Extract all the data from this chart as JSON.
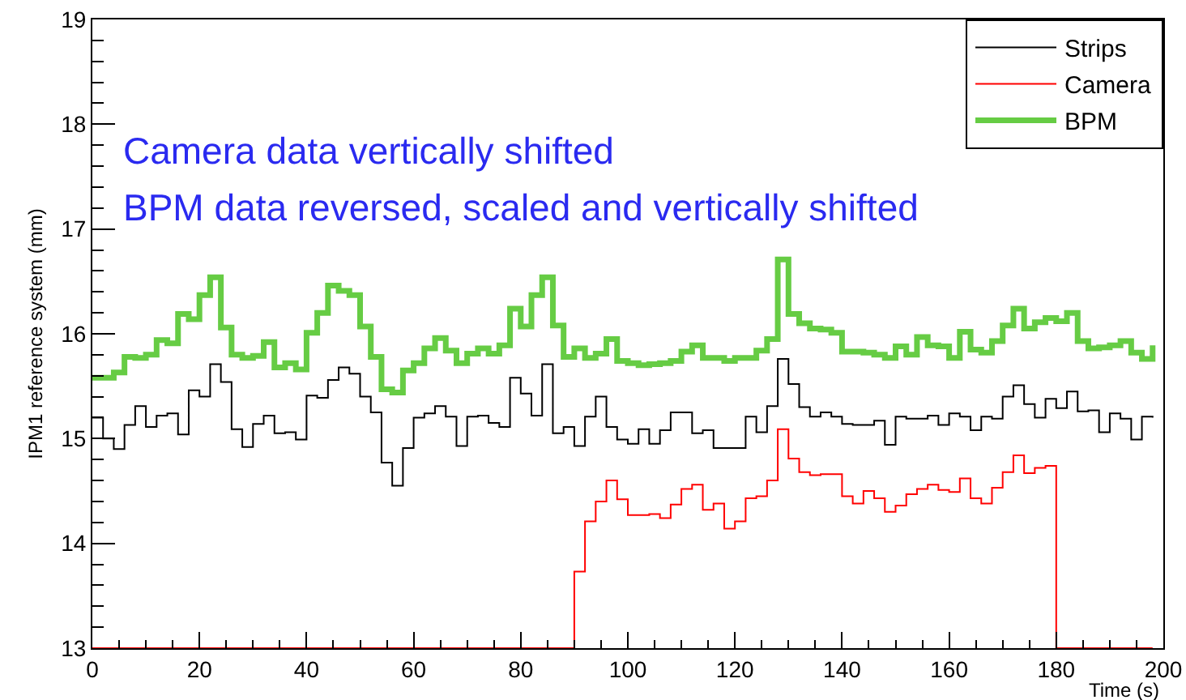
{
  "chart_data": {
    "type": "step",
    "xlabel": "Time (s)",
    "ylabel": "IPM1 reference system (mm)",
    "annotations": [
      "Camera data vertically shifted",
      "BPM data reversed, scaled and vertically shifted"
    ],
    "x": [
      0,
      2,
      4,
      6,
      8,
      10,
      12,
      14,
      16,
      18,
      20,
      22,
      24,
      26,
      28,
      30,
      32,
      34,
      36,
      38,
      40,
      42,
      44,
      46,
      48,
      50,
      52,
      54,
      56,
      58,
      60,
      62,
      64,
      66,
      68,
      70,
      72,
      74,
      76,
      78,
      80,
      82,
      84,
      86,
      88,
      90,
      92,
      94,
      96,
      98,
      100,
      102,
      104,
      106,
      108,
      110,
      112,
      114,
      116,
      118,
      120,
      122,
      124,
      126,
      128,
      130,
      132,
      134,
      136,
      138,
      140,
      142,
      144,
      146,
      148,
      150,
      152,
      154,
      156,
      158,
      160,
      162,
      164,
      166,
      168,
      170,
      172,
      174,
      176,
      178,
      180,
      182,
      184,
      186,
      188,
      190,
      192,
      194,
      196,
      198
    ],
    "series": [
      {
        "name": "Strips",
        "color": "#000000",
        "values": [
          15.2,
          15.0,
          14.9,
          15.13,
          15.31,
          15.11,
          15.22,
          15.24,
          15.04,
          15.46,
          15.4,
          15.71,
          15.54,
          15.09,
          14.92,
          15.14,
          15.22,
          15.05,
          15.06,
          14.99,
          15.41,
          15.39,
          15.56,
          15.68,
          15.62,
          15.4,
          15.25,
          14.77,
          14.55,
          14.91,
          15.2,
          15.24,
          15.31,
          15.21,
          14.93,
          15.21,
          15.22,
          15.15,
          15.11,
          15.58,
          15.43,
          15.22,
          15.71,
          15.05,
          15.11,
          14.93,
          15.21,
          15.4,
          15.11,
          14.99,
          14.95,
          15.09,
          14.95,
          15.08,
          15.25,
          15.25,
          15.05,
          15.08,
          14.91,
          14.91,
          14.91,
          15.21,
          15.06,
          15.31,
          15.76,
          15.52,
          15.3,
          15.21,
          15.25,
          15.21,
          15.14,
          15.13,
          15.13,
          15.17,
          14.94,
          15.21,
          15.19,
          15.19,
          15.22,
          15.13,
          15.24,
          15.21,
          15.08,
          15.21,
          15.19,
          15.4,
          15.51,
          15.33,
          15.2,
          15.38,
          15.29,
          15.45,
          15.26,
          15.27,
          15.06,
          15.24,
          15.19,
          14.99,
          15.21,
          15.2
        ]
      },
      {
        "name": "Camera",
        "color": "#ff0000",
        "values": [
          13,
          13,
          13,
          13,
          13,
          13,
          13,
          13,
          13,
          13,
          13,
          13,
          13,
          13,
          13,
          13,
          13,
          13,
          13,
          13,
          13,
          13,
          13,
          13,
          13,
          13,
          13,
          13,
          13,
          13,
          13,
          13,
          13,
          13,
          13,
          13,
          13,
          13,
          13,
          13,
          13,
          13,
          13,
          13,
          13,
          13.73,
          14.21,
          14.4,
          14.6,
          14.42,
          14.27,
          14.27,
          14.28,
          14.24,
          14.37,
          14.52,
          14.56,
          14.32,
          14.38,
          14.14,
          14.21,
          14.43,
          14.45,
          14.6,
          15.09,
          14.81,
          14.68,
          14.65,
          14.66,
          14.66,
          14.45,
          14.38,
          14.5,
          14.43,
          14.3,
          14.36,
          14.47,
          14.52,
          14.56,
          14.51,
          14.49,
          14.62,
          14.43,
          14.38,
          14.53,
          14.68,
          14.84,
          14.67,
          14.72,
          14.74,
          13,
          13,
          13,
          13,
          13,
          13,
          13,
          13,
          13,
          13
        ]
      },
      {
        "name": "BPM",
        "color": "#66cc44",
        "values": [
          15.58,
          15.58,
          15.63,
          15.78,
          15.77,
          15.8,
          15.94,
          15.91,
          16.19,
          16.14,
          16.37,
          16.54,
          16.06,
          15.8,
          15.77,
          15.79,
          15.92,
          15.68,
          15.72,
          15.66,
          16.01,
          16.2,
          16.46,
          16.41,
          16.37,
          16.07,
          15.78,
          15.47,
          15.44,
          15.65,
          15.72,
          15.86,
          15.96,
          15.84,
          15.72,
          15.81,
          15.86,
          15.81,
          15.89,
          16.24,
          16.07,
          16.37,
          16.54,
          16.08,
          15.78,
          15.86,
          15.77,
          15.81,
          15.95,
          15.74,
          15.72,
          15.7,
          15.71,
          15.72,
          15.74,
          15.83,
          15.89,
          15.77,
          15.77,
          15.74,
          15.77,
          15.77,
          15.84,
          15.95,
          16.71,
          16.19,
          16.1,
          16.05,
          16.04,
          16.01,
          15.83,
          15.83,
          15.82,
          15.8,
          15.77,
          15.88,
          15.8,
          15.97,
          15.89,
          15.88,
          15.77,
          16.02,
          15.85,
          15.82,
          15.93,
          16.08,
          16.24,
          16.05,
          16.11,
          16.15,
          16.12,
          16.2,
          15.93,
          15.86,
          15.87,
          15.89,
          15.93,
          15.82,
          15.76,
          15.89
        ]
      }
    ],
    "xlim": [
      0,
      200
    ],
    "xticks": [
      0,
      20,
      40,
      60,
      80,
      100,
      120,
      140,
      160,
      180,
      200
    ],
    "ylim": [
      13,
      19
    ],
    "yticks": [
      13,
      14,
      15,
      16,
      17,
      18,
      19
    ],
    "grid": false,
    "legend": "top right",
    "marker": "none",
    "line_style": "solid"
  }
}
